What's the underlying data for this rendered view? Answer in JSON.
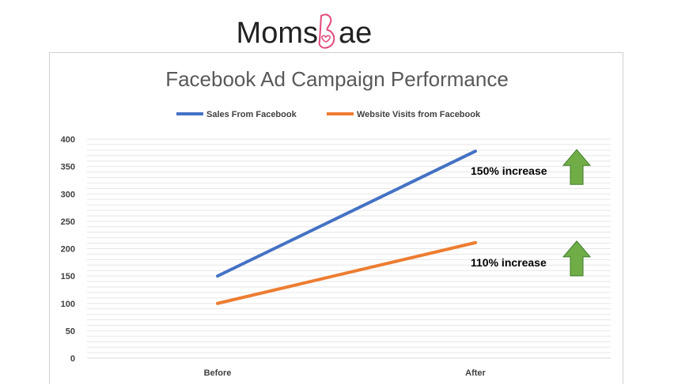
{
  "brand": {
    "logo_text": "MomsBae",
    "logo_prefix": "Moms",
    "logo_suffix": "ae",
    "logo_text_color": "#222222",
    "logo_accent_color": "#e24a7a"
  },
  "chart_data": {
    "type": "line",
    "title": "Facebook Ad Campaign Performance",
    "xlabel": "",
    "ylabel": "",
    "categories": [
      "Before",
      "After"
    ],
    "series": [
      {
        "name": "Sales From Facebook",
        "values": [
          150,
          378
        ],
        "color": "#4472c4"
      },
      {
        "name": "Website Visits from Facebook",
        "values": [
          100,
          211
        ],
        "color": "#ed7d31"
      }
    ],
    "ylim": [
      0,
      400
    ],
    "yticks": [
      0,
      50,
      100,
      150,
      200,
      250,
      300,
      350,
      400
    ],
    "grid": true,
    "legend_position": "top",
    "annotations": [
      {
        "text": "150% increase",
        "series": "Sales From Facebook",
        "icon": "up-arrow-icon",
        "arrow_color": "#70ad47"
      },
      {
        "text": "110% increase",
        "series": "Website Visits from Facebook",
        "icon": "up-arrow-icon",
        "arrow_color": "#70ad47"
      }
    ]
  }
}
